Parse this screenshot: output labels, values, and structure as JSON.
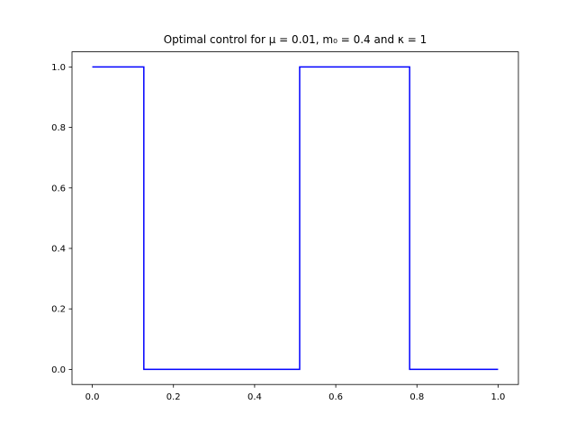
{
  "chart_data": {
    "type": "line",
    "title": "Optimal control for μ = 0.01, m₀ = 0.4 and κ = 1",
    "x": [
      0,
      0.127,
      0.127,
      0.511,
      0.511,
      0.782,
      0.782,
      1
    ],
    "series": [
      {
        "color": "#0000ff",
        "values": [
          1,
          1,
          0,
          0,
          1,
          1,
          0,
          0
        ]
      }
    ],
    "xlim": [
      -0.05,
      1.05
    ],
    "xticks": [
      {
        "value": 0,
        "label": "0.0"
      },
      0.2,
      0.4,
      0.6,
      0.8,
      {
        "value": 1,
        "label": "1.0"
      }
    ],
    "ylim": [
      -0.05,
      1.05
    ],
    "yticks": [
      {
        "value": 0,
        "label": "0.0"
      },
      0.2,
      0.4,
      0.6,
      0.8,
      {
        "value": 1,
        "label": "1.0"
      }
    ],
    "grid": false
  }
}
